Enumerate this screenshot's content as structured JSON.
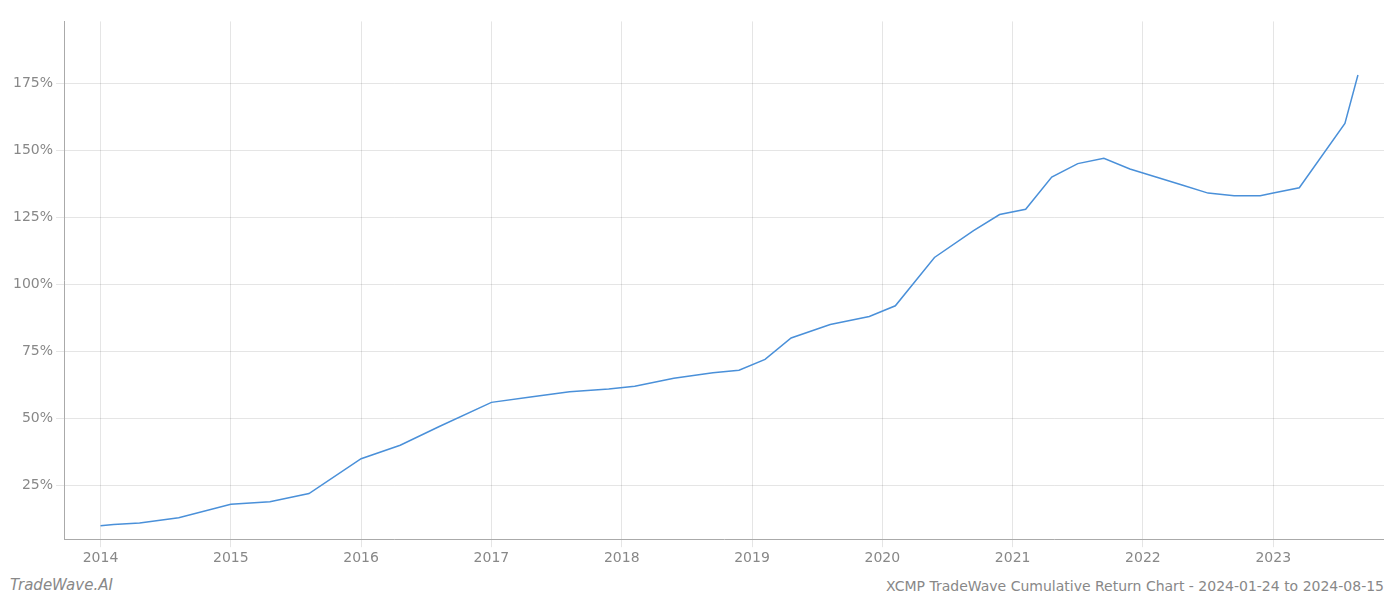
{
  "chart_data": {
    "type": "line",
    "title": "XCMP TradeWave Cumulative Return Chart - 2024-01-24 to 2024-08-15",
    "annotations": [
      "TradeWave.AI"
    ],
    "color": "#4a90d9",
    "x": [
      2014.0,
      2014.1,
      2014.3,
      2014.6,
      2015.0,
      2015.3,
      2015.6,
      2016.0,
      2016.3,
      2016.6,
      2017.0,
      2017.3,
      2017.6,
      2017.9,
      2018.1,
      2018.4,
      2018.7,
      2018.9,
      2019.1,
      2019.3,
      2019.6,
      2019.9,
      2020.1,
      2020.4,
      2020.7,
      2020.9,
      2021.1,
      2021.3,
      2021.5,
      2021.7,
      2021.9,
      2022.1,
      2022.3,
      2022.5,
      2022.7,
      2022.9,
      2023.0,
      2023.2,
      2023.55,
      2023.65
    ],
    "values": [
      10,
      10.5,
      11,
      13,
      18,
      19,
      22,
      35,
      40,
      47,
      56,
      58,
      60,
      61,
      62,
      65,
      67,
      68,
      72,
      80,
      85,
      88,
      92,
      110,
      120,
      126,
      128,
      140,
      145,
      147,
      143,
      140,
      137,
      134,
      133,
      133,
      134,
      136,
      160,
      178
    ],
    "xlim": [
      2013.72,
      2023.85
    ],
    "xticks": [
      2014,
      2015,
      2016,
      2017,
      2018,
      2019,
      2020,
      2021,
      2022,
      2023
    ],
    "ylim": [
      5,
      198
    ],
    "yticks": [
      {
        "value": 25,
        "label": "25%"
      },
      {
        "value": 50,
        "label": "50%"
      },
      {
        "value": 75,
        "label": "75%"
      },
      {
        "value": 100,
        "label": "100%"
      },
      {
        "value": 125,
        "label": "125%"
      },
      {
        "value": 150,
        "label": "150%"
      },
      {
        "value": 175,
        "label": "175%"
      }
    ],
    "grid": true
  }
}
